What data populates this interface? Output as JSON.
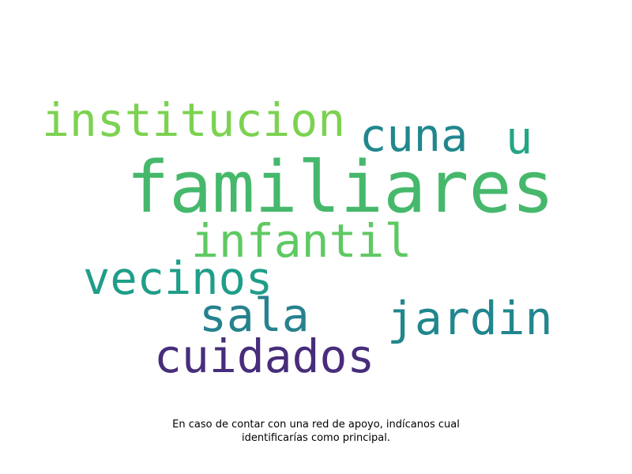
{
  "word_cloud": {
    "words": [
      {
        "text": "familiares",
        "color": "#46b86c"
      },
      {
        "text": "institucion",
        "color": "#7cd250"
      },
      {
        "text": "cuna",
        "color": "#21878d"
      },
      {
        "text": "u",
        "color": "#25a585"
      },
      {
        "text": "infantil",
        "color": "#5ec962"
      },
      {
        "text": "vecinos",
        "color": "#1f9e89"
      },
      {
        "text": "sala",
        "color": "#26828e"
      },
      {
        "text": "jardin",
        "color": "#21868d"
      },
      {
        "text": "cuidados",
        "color": "#472d7b"
      }
    ]
  },
  "caption": {
    "line1": "En caso de contar con una red de apoyo, indícanos cual",
    "line2": "identificarías como principal."
  }
}
